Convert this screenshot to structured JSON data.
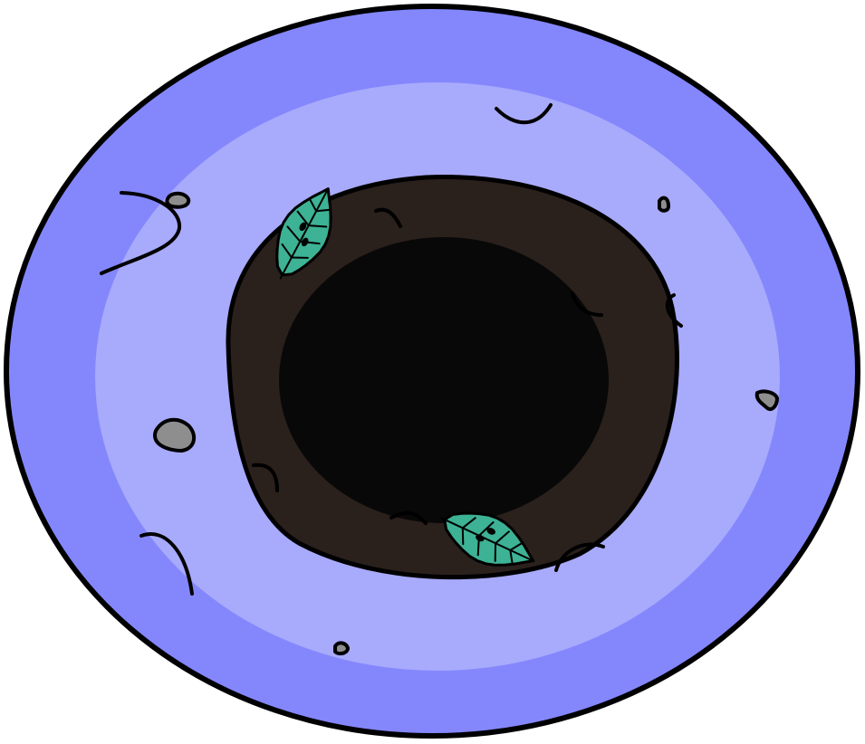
{
  "scene": {
    "subject": "hole",
    "colors": {
      "background": "#ffffff",
      "outer_ring": "#8487fc",
      "inner_ring": "#a8aafc",
      "soil": "#2a201c",
      "pit": "#090808",
      "leaf": "#3db295",
      "pebble": "#8e8e8e",
      "outline": "#000000"
    },
    "icons": {
      "leaves": [
        "leaf-icon",
        "leaf-icon"
      ],
      "pebbles": [
        "pebble-icon",
        "pebble-icon",
        "pebble-icon",
        "pebble-icon",
        "pebble-icon"
      ],
      "cracks": [
        "crack-mark",
        "crack-mark",
        "crack-mark",
        "crack-mark",
        "crack-mark",
        "crack-mark",
        "crack-mark",
        "crack-mark"
      ]
    }
  }
}
